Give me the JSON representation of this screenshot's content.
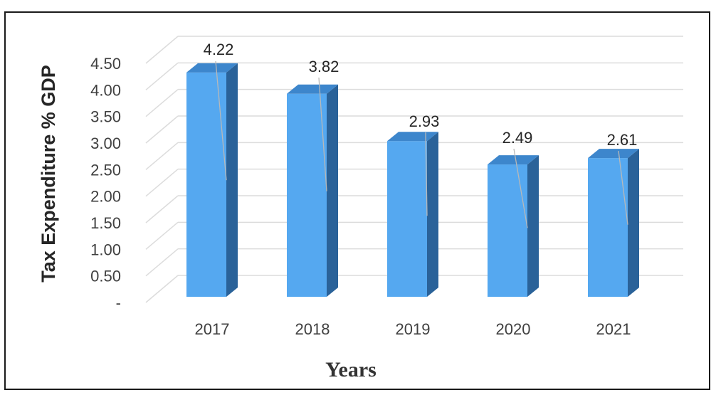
{
  "chart_data": {
    "type": "bar",
    "categories": [
      "2017",
      "2018",
      "2019",
      "2020",
      "2021"
    ],
    "values": [
      4.22,
      3.82,
      2.93,
      2.49,
      2.61
    ],
    "data_labels": [
      "4.22",
      "3.82",
      "2.93",
      "2.49",
      "2.61"
    ],
    "ytick_labels": [
      "-",
      "0.50",
      "1.00",
      "1.50",
      "2.00",
      "2.50",
      "3.00",
      "3.50",
      "4.00",
      "4.50"
    ],
    "ytick_values": [
      0,
      0.5,
      1.0,
      1.5,
      2.0,
      2.5,
      3.0,
      3.5,
      4.0,
      4.5
    ],
    "ylim": [
      0,
      4.5
    ],
    "xlabel": "Years",
    "ylabel": "Tax Expenditure % GDP",
    "grid": true,
    "style": "3d-column",
    "colors": {
      "front": "#55a8f0",
      "side": "#2a6299",
      "top": "#3d86cc",
      "grid": "#dcdcdc"
    }
  }
}
